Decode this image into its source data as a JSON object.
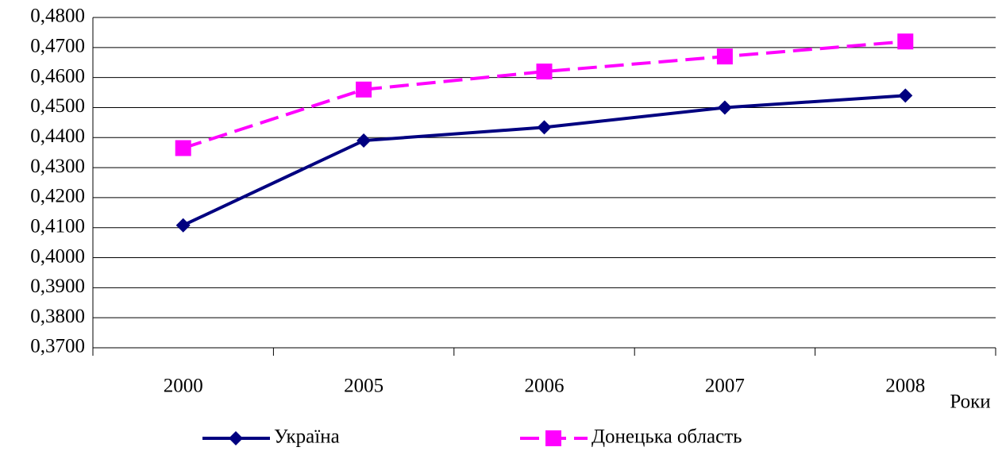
{
  "chart_data": {
    "type": "line",
    "x_label": "Роки",
    "categories": [
      "2000",
      "2005",
      "2006",
      "2007",
      "2008"
    ],
    "series": [
      {
        "name": "Україна",
        "color": "#000080",
        "marker": "diamond",
        "dashed": false,
        "values": [
          0.4108,
          0.439,
          0.4434,
          0.45,
          0.454
        ]
      },
      {
        "name": "Донецька область",
        "color": "#ff00ff",
        "marker": "square",
        "dashed": true,
        "values": [
          0.4365,
          0.456,
          0.462,
          0.467,
          0.472
        ]
      }
    ],
    "ylim": [
      0.37,
      0.48
    ],
    "yticks": [
      {
        "value": 0.37,
        "label": "0,3700"
      },
      {
        "value": 0.38,
        "label": "0,3800"
      },
      {
        "value": 0.39,
        "label": "0,3900"
      },
      {
        "value": 0.4,
        "label": "0,4000"
      },
      {
        "value": 0.41,
        "label": "0,4100"
      },
      {
        "value": 0.42,
        "label": "0,4200"
      },
      {
        "value": 0.43,
        "label": "0,4300"
      },
      {
        "value": 0.44,
        "label": "0,4400"
      },
      {
        "value": 0.45,
        "label": "0,4500"
      },
      {
        "value": 0.46,
        "label": "0,4600"
      },
      {
        "value": 0.47,
        "label": "0,4700"
      },
      {
        "value": 0.48,
        "label": "0,4800"
      }
    ],
    "grid": true,
    "legend": "bottom"
  }
}
